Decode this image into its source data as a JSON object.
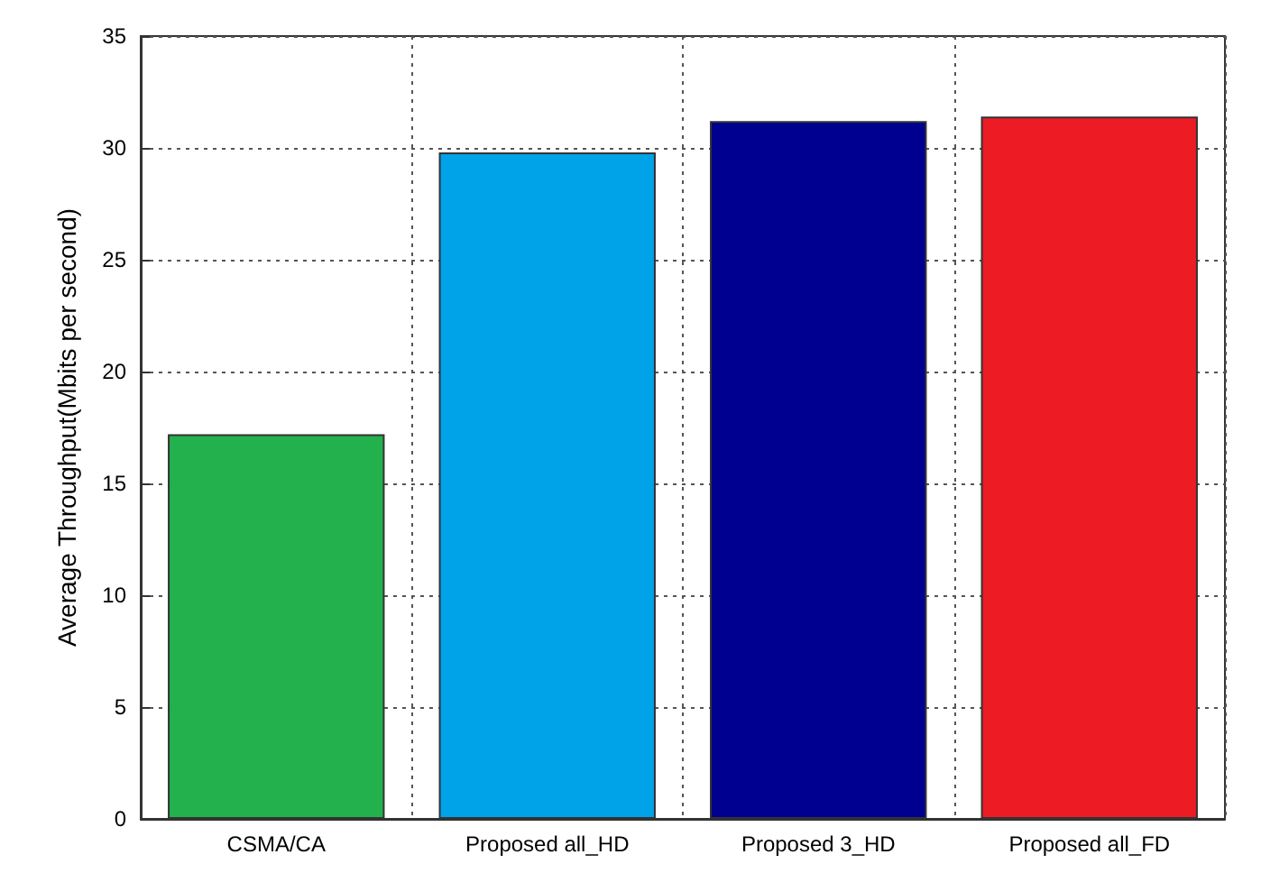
{
  "chart_data": {
    "type": "bar",
    "ylabel": "Average Throughput(Mbits per second)",
    "categories": [
      "CSMA/CA",
      "Proposed all_HD",
      "Proposed 3_HD",
      "Proposed all_FD"
    ],
    "values": [
      17.2,
      29.8,
      31.2,
      31.4
    ],
    "colors": [
      "#22b14c",
      "#00a2e8",
      "#000090",
      "#ed1c24"
    ],
    "ylim": [
      0,
      35
    ],
    "yticks": [
      0,
      5,
      10,
      15,
      20,
      25,
      30,
      35
    ],
    "grid": true
  }
}
